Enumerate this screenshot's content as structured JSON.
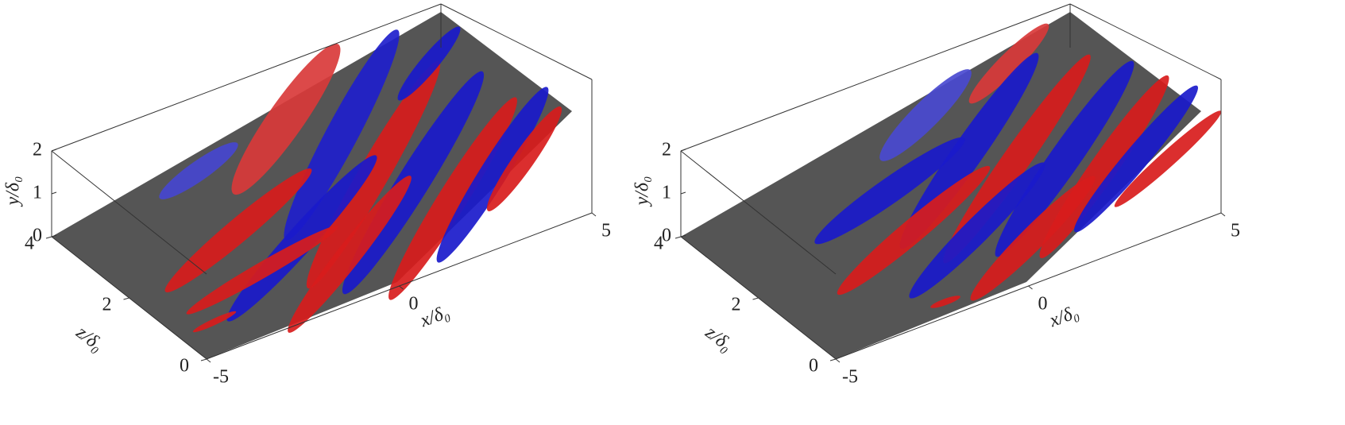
{
  "panels": [
    {
      "y_axis": {
        "label": "y/δ₀",
        "ticks": [
          0,
          1,
          2
        ]
      },
      "z_axis": {
        "label": "z/δ₀",
        "ticks": [
          0,
          2,
          4
        ]
      },
      "x_axis": {
        "label": "x/δ₀",
        "ticks": [
          -5,
          0,
          5
        ]
      }
    },
    {
      "y_axis": {
        "label": "y/δ₀",
        "ticks": [
          0,
          1,
          2
        ]
      },
      "z_axis": {
        "label": "z/δ₀",
        "ticks": [
          0,
          2,
          4
        ]
      },
      "x_axis": {
        "label": "x/δ₀",
        "ticks": [
          -5,
          0,
          5
        ]
      }
    }
  ]
}
